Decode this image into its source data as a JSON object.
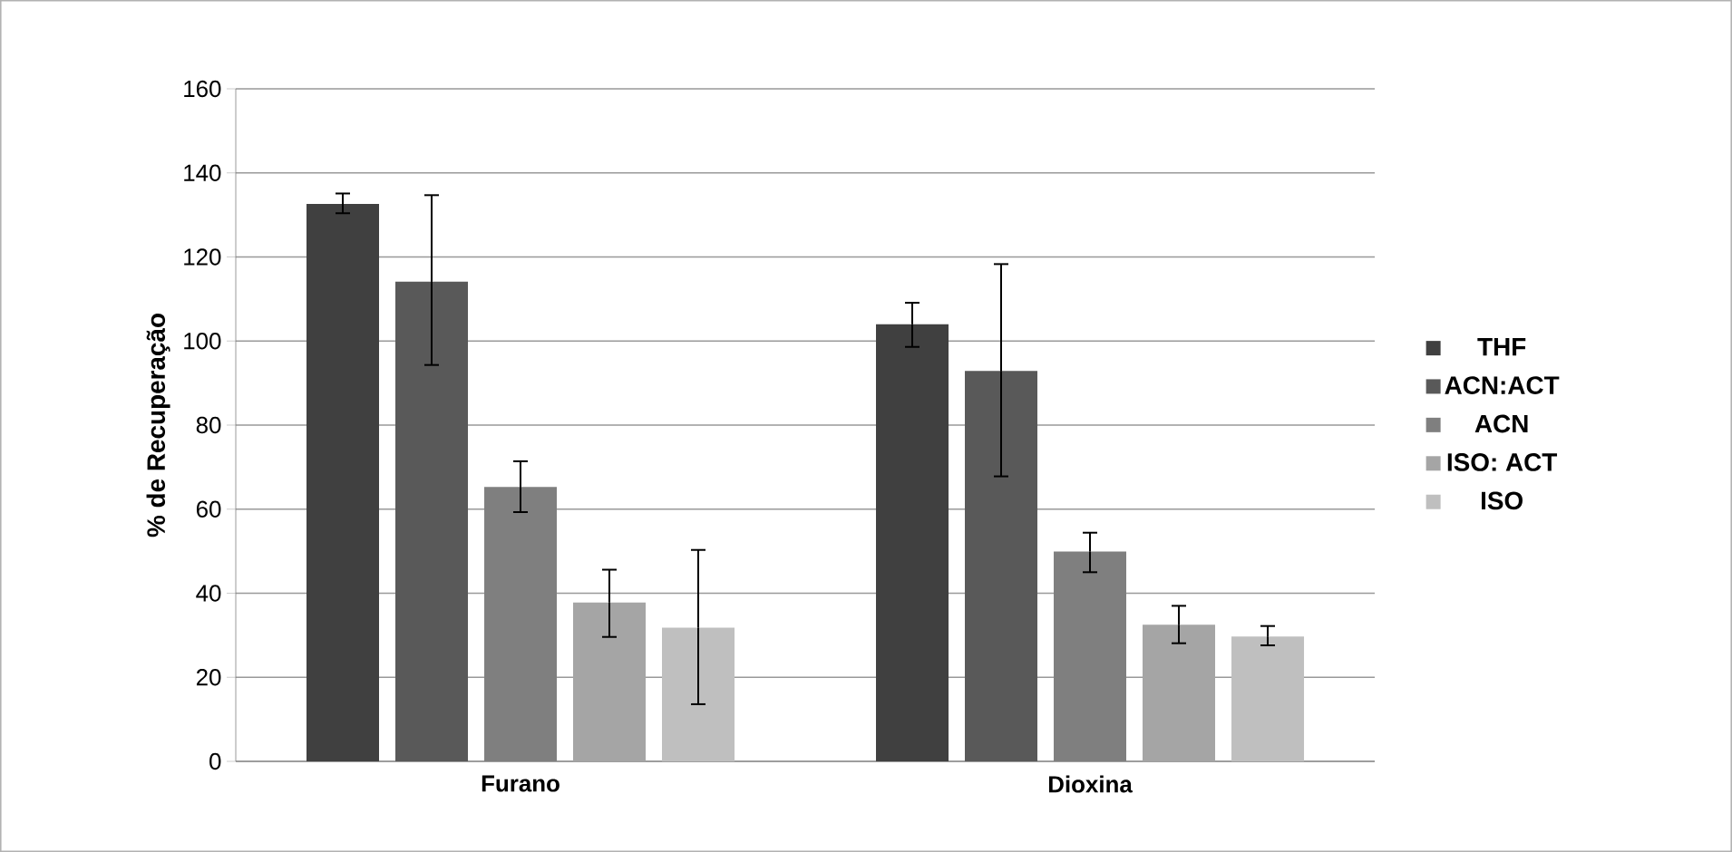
{
  "chart_data": {
    "type": "bar",
    "ylabel": "% de Recuperação",
    "categories": [
      "Furano",
      "Dioxina"
    ],
    "series": [
      {
        "name": "THF",
        "color": "#404040",
        "values": [
          132.6,
          104.0
        ],
        "errors": [
          [
            130.4,
            135.1
          ],
          [
            98.6,
            109.1
          ]
        ]
      },
      {
        "name": "ACN:ACT",
        "color": "#595959",
        "values": [
          114.1,
          92.9
        ],
        "errors": [
          [
            94.3,
            134.7
          ],
          [
            67.8,
            118.3
          ]
        ]
      },
      {
        "name": "ACN",
        "color": "#7f7f7f",
        "values": [
          65.3,
          49.9
        ],
        "errors": [
          [
            59.3,
            71.4
          ],
          [
            45.0,
            54.4
          ]
        ]
      },
      {
        "name": "ISO: ACT",
        "color": "#a5a5a5",
        "values": [
          37.8,
          32.5
        ],
        "errors": [
          [
            29.6,
            45.6
          ],
          [
            28.1,
            37.0
          ]
        ]
      },
      {
        "name": "ISO",
        "color": "#bfbfbf",
        "values": [
          31.8,
          29.7
        ],
        "errors": [
          [
            13.6,
            50.3
          ],
          [
            27.6,
            32.2
          ]
        ]
      }
    ],
    "ylim": [
      0,
      160
    ],
    "yticks": [
      0,
      20,
      40,
      60,
      80,
      100,
      120,
      140,
      160
    ],
    "grid": "y",
    "legend": "right"
  }
}
